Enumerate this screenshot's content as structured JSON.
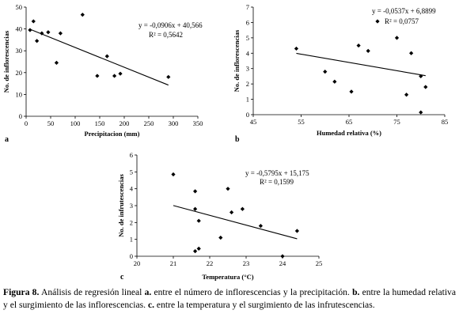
{
  "chart_data": [
    {
      "type": "scatter",
      "panel": "a",
      "xlabel": "Precipitacion (mm)",
      "ylabel": "No. de inflorescencias",
      "xlim": [
        0,
        350
      ],
      "ylim": [
        0,
        50
      ],
      "xticks": [
        "0",
        "50",
        "100",
        "150",
        "200",
        "250",
        "300",
        "350"
      ],
      "yticks": [
        "0",
        "10",
        "20",
        "30",
        "40",
        "50"
      ],
      "points": [
        [
          8,
          39.5
        ],
        [
          15,
          43.5
        ],
        [
          22,
          34.5
        ],
        [
          32,
          38
        ],
        [
          45,
          38.5
        ],
        [
          62,
          24.5
        ],
        [
          70,
          38
        ],
        [
          115,
          46.5
        ],
        [
          145,
          18.5
        ],
        [
          165,
          27.5
        ],
        [
          180,
          18.5
        ],
        [
          192,
          19.5
        ],
        [
          290,
          18
        ]
      ],
      "trendline": {
        "slope": -0.0906,
        "intercept": 40.566
      },
      "equation": "y = -0,0906x + 40,566",
      "r2": "R² = 0,5642"
    },
    {
      "type": "scatter",
      "panel": "b",
      "xlabel": "Humedad relativa (%)",
      "ylabel": "No. de inflorescencias",
      "xlim": [
        45,
        85
      ],
      "ylim": [
        0,
        7
      ],
      "xticks": [
        "45",
        "55",
        "65",
        "75",
        "85"
      ],
      "yticks": [
        "0",
        "1",
        "2",
        "3",
        "4",
        "5",
        "6",
        "7"
      ],
      "points": [
        [
          54,
          4.3
        ],
        [
          60,
          2.8
        ],
        [
          62,
          2.15
        ],
        [
          65.5,
          1.5
        ],
        [
          67,
          4.5
        ],
        [
          69,
          4.15
        ],
        [
          75,
          5
        ],
        [
          77,
          1.3
        ],
        [
          78,
          4
        ],
        [
          80,
          2.5
        ],
        [
          80,
          0.15
        ],
        [
          81,
          1.8
        ]
      ],
      "trendline": {
        "slope": -0.0537,
        "intercept": 6.8899
      },
      "equation": "y = -0,0537x + 6,8899",
      "r2": "R² = 0,0757"
    },
    {
      "type": "scatter",
      "panel": "c",
      "xlabel": "Temperatura (°C)",
      "ylabel": "No. de infrutescencias",
      "xlim": [
        20,
        25
      ],
      "ylim": [
        0,
        6
      ],
      "xticks": [
        "20",
        "21",
        "22",
        "23",
        "24",
        "25"
      ],
      "yticks": [
        "0",
        "1",
        "2",
        "3",
        "4",
        "5",
        "6"
      ],
      "points": [
        [
          21,
          4.85
        ],
        [
          21.6,
          3.85
        ],
        [
          21.6,
          2.8
        ],
        [
          21.6,
          0.3
        ],
        [
          21.7,
          2.1
        ],
        [
          21.7,
          0.45
        ],
        [
          22.3,
          1.1
        ],
        [
          22.5,
          4
        ],
        [
          22.6,
          2.6
        ],
        [
          22.9,
          2.8
        ],
        [
          23.4,
          1.8
        ],
        [
          24,
          0
        ],
        [
          24.4,
          1.5
        ]
      ],
      "trendline": {
        "slope": -0.5795,
        "intercept": 15.175
      },
      "equation": "y = -0,5795x + 15,175",
      "r2": "R² = 0,1599"
    }
  ],
  "caption": {
    "figure_label": "Figura 8.",
    "part1": " Análisis de regresión lineal ",
    "a_label": "a.",
    "part2": " entre el número de inflorescencias y la precipitación. ",
    "b_label": "b.",
    "part3": " entre la humedad relativa y el surgimiento de las inflorescencias. ",
    "c_label": "c.",
    "part4": " entre la temperatura y el surgimiento de las infrutescencias."
  },
  "colors": {
    "marker": "#000000",
    "line": "#000000",
    "axis": "#000000"
  }
}
